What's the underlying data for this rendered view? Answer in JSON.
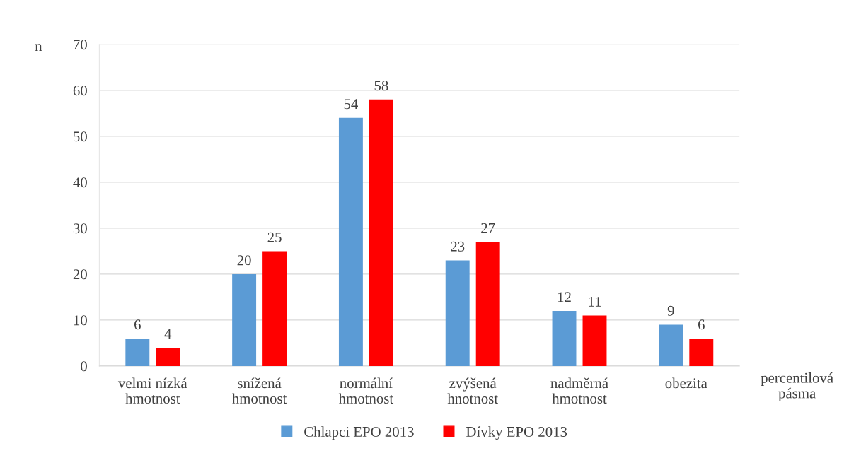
{
  "chart_data": {
    "type": "bar",
    "categories": [
      "velmi nízká\nhmotnost",
      "snížená\nhmotnost",
      "normální\nhmotnost",
      "zvýšená\nhnotnost",
      "nadměrná\nhmotnost",
      "obezita"
    ],
    "series": [
      {
        "name": "Chlapci EPO 2013",
        "color": "#5b9bd5",
        "values": [
          6,
          20,
          54,
          23,
          12,
          9
        ]
      },
      {
        "name": "Dívky EPO 2013",
        "color": "#ff0000",
        "values": [
          4,
          25,
          58,
          27,
          11,
          6
        ]
      }
    ],
    "xlabel": "percentilová\npásma",
    "ylabel": "n",
    "ylim": [
      0,
      70
    ],
    "yticks": [
      0,
      10,
      20,
      30,
      40,
      50,
      60,
      70
    ],
    "grid": "y",
    "legend": "bottom",
    "data_labels": true
  }
}
